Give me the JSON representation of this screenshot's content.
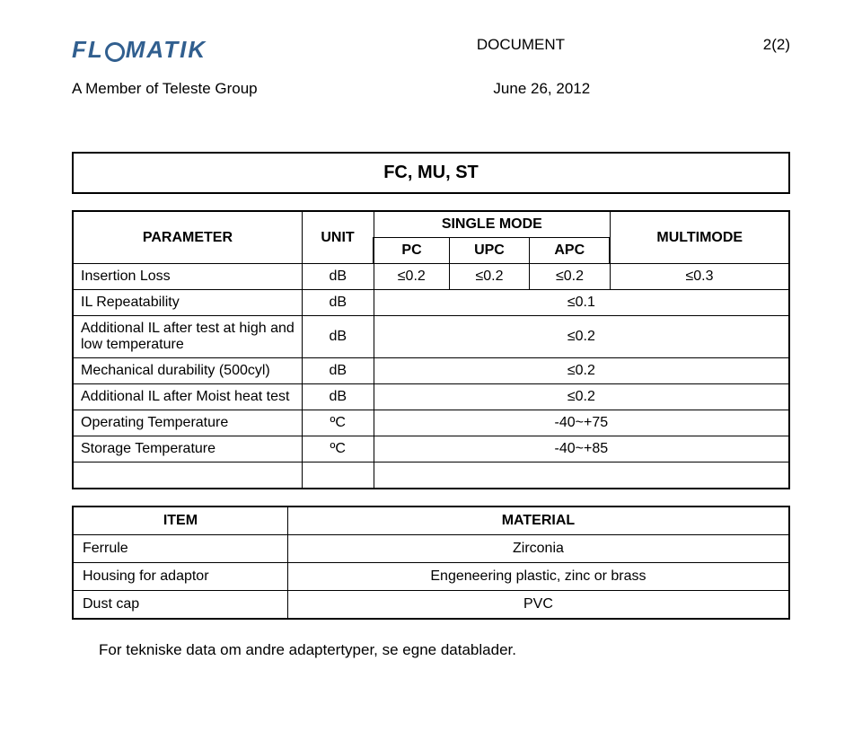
{
  "header": {
    "logo_text_pre": "FL",
    "logo_text_post": "MATIK",
    "doc_label": "DOCUMENT",
    "page": "2(2)",
    "member": "A Member of Teleste Group",
    "date": "June 26, 2012"
  },
  "title": "FC, MU, ST",
  "param_headers": {
    "parameter": "PARAMETER",
    "unit": "UNIT",
    "single_mode": "SINGLE MODE",
    "multimode": "MULTIMODE",
    "pc": "PC",
    "upc": "UPC",
    "apc": "APC"
  },
  "rows": [
    {
      "name": "Insertion Loss",
      "unit": "dB",
      "pc": "≤0.2",
      "upc": "≤0.2",
      "apc": "≤0.2",
      "mm": "≤0.3"
    },
    {
      "name": "IL Repeatability",
      "unit": "dB",
      "span": "≤0.1"
    },
    {
      "name": "Additional IL after test at high and low temperature",
      "unit": "dB",
      "span": "≤0.2"
    },
    {
      "name": "Mechanical durability (500cyl)",
      "unit": "dB",
      "span": "≤0.2"
    },
    {
      "name": "Additional IL after Moist heat test",
      "unit": "dB",
      "span": "≤0.2"
    },
    {
      "name": "Operating Temperature",
      "unit": "ºC",
      "span": "-40~+75"
    },
    {
      "name": "Storage Temperature",
      "unit": "ºC",
      "span": "-40~+85"
    }
  ],
  "mat_headers": {
    "item": "ITEM",
    "material": "MATERIAL"
  },
  "materials": [
    {
      "item": "Ferrule",
      "material": "Zirconia"
    },
    {
      "item": "Housing for adaptor",
      "material": "Engeneering plastic,  zinc or  brass"
    },
    {
      "item": "Dust cap",
      "material": "PVC"
    }
  ],
  "footnote": "For tekniske data om andre adaptertyper, se egne datablader.",
  "colors": {
    "logo": "#315f8f",
    "text": "#000000",
    "bg": "#ffffff"
  }
}
